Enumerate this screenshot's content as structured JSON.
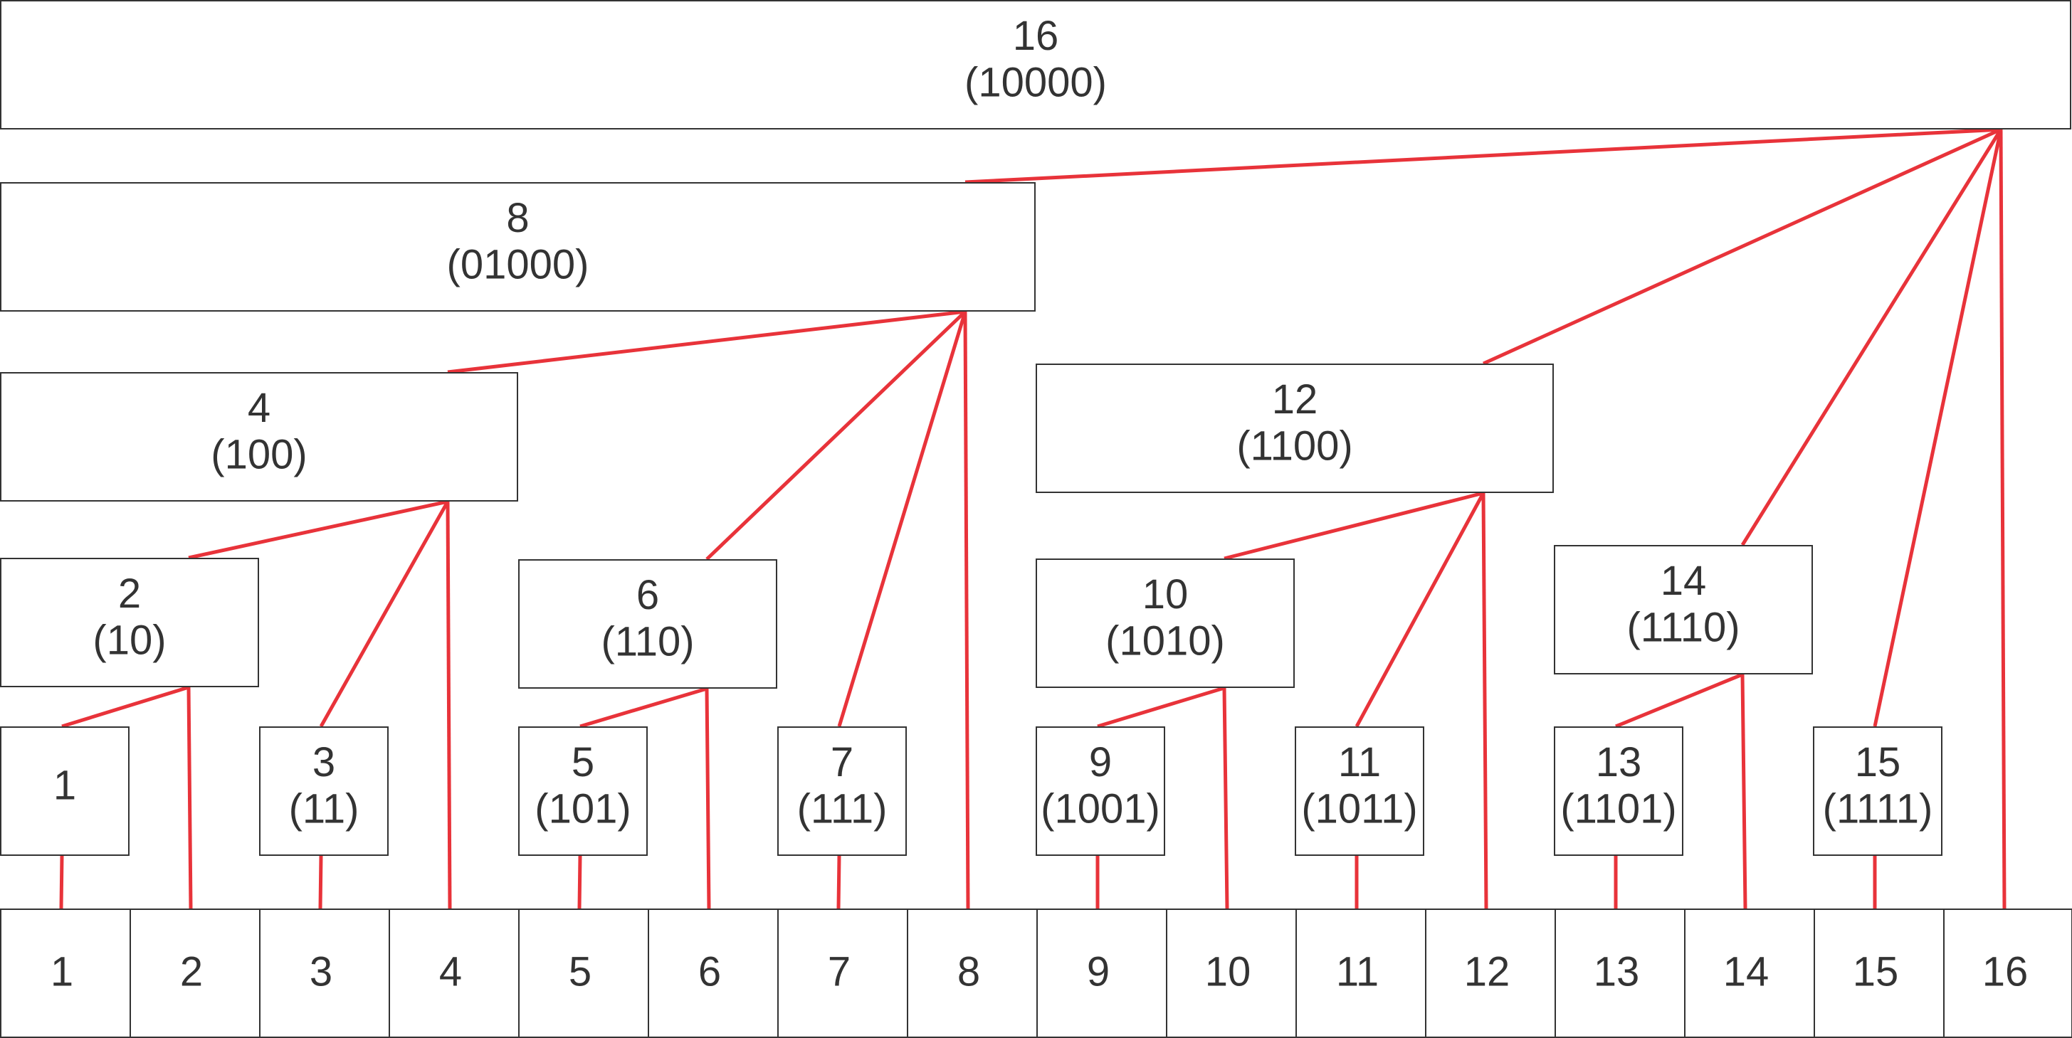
{
  "edge_color": "#e8333a",
  "nodes": [
    {
      "id": "n16",
      "label": "16",
      "binary": "(10000)"
    },
    {
      "id": "n8",
      "label": "8",
      "binary": "(01000)"
    },
    {
      "id": "n4",
      "label": "4",
      "binary": "(100)"
    },
    {
      "id": "n12",
      "label": "12",
      "binary": "(1100)"
    },
    {
      "id": "n2",
      "label": "2",
      "binary": "(10)"
    },
    {
      "id": "n6",
      "label": "6",
      "binary": "(110)"
    },
    {
      "id": "n10",
      "label": "10",
      "binary": "(1010)"
    },
    {
      "id": "n14",
      "label": "14",
      "binary": "(1110)"
    },
    {
      "id": "n1",
      "label": "1",
      "binary": ""
    },
    {
      "id": "n3",
      "label": "3",
      "binary": "(11)"
    },
    {
      "id": "n5",
      "label": "5",
      "binary": "(101)"
    },
    {
      "id": "n7",
      "label": "7",
      "binary": "(111)"
    },
    {
      "id": "n9",
      "label": "9",
      "binary": "(1001)"
    },
    {
      "id": "n11",
      "label": "11",
      "binary": "(1011)"
    },
    {
      "id": "n13",
      "label": "13",
      "binary": "(1101)"
    },
    {
      "id": "n15",
      "label": "15",
      "binary": "(1111)"
    }
  ],
  "array_cells": [
    "1",
    "2",
    "3",
    "4",
    "5",
    "6",
    "7",
    "8",
    "9",
    "10",
    "11",
    "12",
    "13",
    "14",
    "15",
    "16"
  ],
  "edges": [
    {
      "from": "n8",
      "to": "n16"
    },
    {
      "from": "n12",
      "to": "n16"
    },
    {
      "from": "n14",
      "to": "n16"
    },
    {
      "from": "n15",
      "to": "n16"
    },
    {
      "from": "a16",
      "to": "n16"
    },
    {
      "from": "n4",
      "to": "n8"
    },
    {
      "from": "n6",
      "to": "n8"
    },
    {
      "from": "n7",
      "to": "n8"
    },
    {
      "from": "a8",
      "to": "n8"
    },
    {
      "from": "n2",
      "to": "n4"
    },
    {
      "from": "n3",
      "to": "n4"
    },
    {
      "from": "a4",
      "to": "n4"
    },
    {
      "from": "n1",
      "to": "n2"
    },
    {
      "from": "a2",
      "to": "n2"
    },
    {
      "from": "n5",
      "to": "n6"
    },
    {
      "from": "a6",
      "to": "n6"
    },
    {
      "from": "n10",
      "to": "n12"
    },
    {
      "from": "n11",
      "to": "n12"
    },
    {
      "from": "a12",
      "to": "n12"
    },
    {
      "from": "n9",
      "to": "n10"
    },
    {
      "from": "a10",
      "to": "n10"
    },
    {
      "from": "n13",
      "to": "n14"
    },
    {
      "from": "a14",
      "to": "n14"
    },
    {
      "from": "a1",
      "to": "n1"
    },
    {
      "from": "a3",
      "to": "n3"
    },
    {
      "from": "a5",
      "to": "n5"
    },
    {
      "from": "a7",
      "to": "n7"
    },
    {
      "from": "a9",
      "to": "n9"
    },
    {
      "from": "a11",
      "to": "n11"
    },
    {
      "from": "a13",
      "to": "n13"
    },
    {
      "from": "a15",
      "to": "n15"
    }
  ]
}
